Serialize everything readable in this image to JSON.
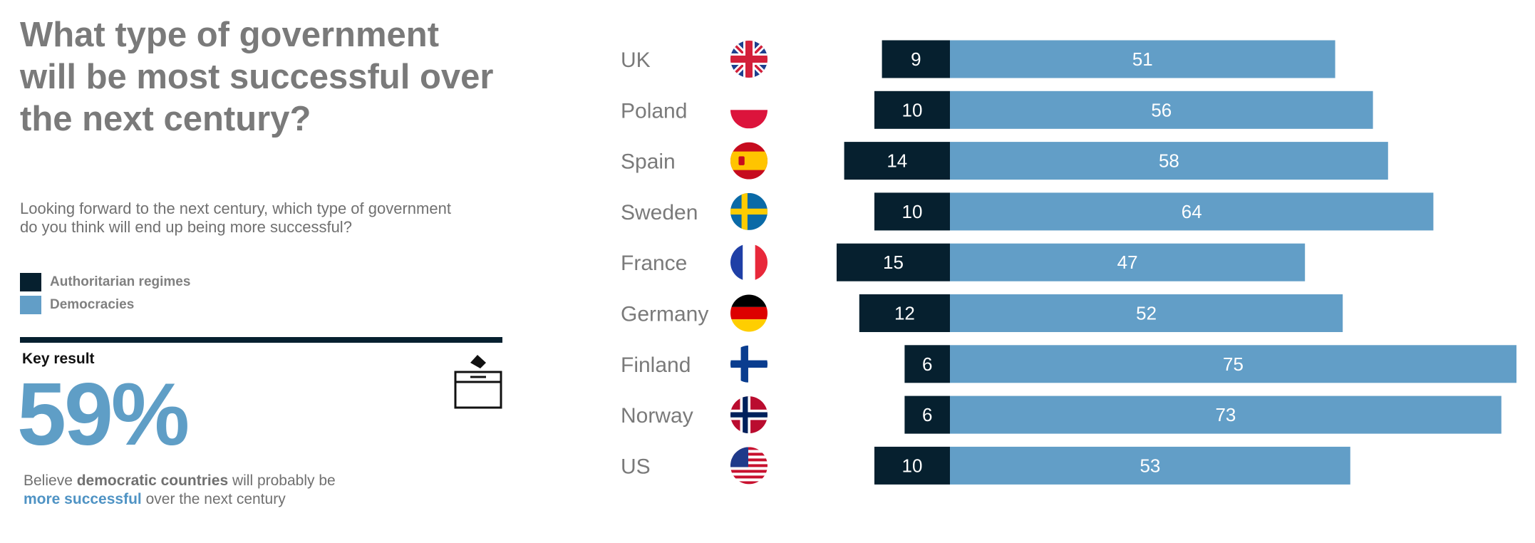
{
  "title": "What type of government will be most successful over the next century?",
  "question": "Looking forward to the next century, which type of government do you think will end up being more successful?",
  "legend": [
    {
      "label": "Authoritarian regimes",
      "color": "#06202f"
    },
    {
      "label": "Democracies",
      "color": "#629ec7"
    }
  ],
  "key_result": {
    "label": "Key result",
    "value": "59%",
    "icon": "ballot-box-icon",
    "note_parts": [
      "Believe ",
      "democratic countries",
      " will probably be",
      "more successful",
      " over the next century"
    ]
  },
  "chart_data": {
    "type": "bar",
    "orientation": "horizontal",
    "stacking": "diverging",
    "categories": [
      "UK",
      "Poland",
      "Spain",
      "Sweden",
      "France",
      "Germany",
      "Finland",
      "Norway",
      "US"
    ],
    "flag_icons": [
      "uk-flag-icon",
      "poland-flag-icon",
      "spain-flag-icon",
      "sweden-flag-icon",
      "france-flag-icon",
      "germany-flag-icon",
      "finland-flag-icon",
      "norway-flag-icon",
      "us-flag-icon"
    ],
    "series": [
      {
        "name": "Authoritarian regimes",
        "color": "#06202f",
        "values": [
          9,
          10,
          14,
          10,
          15,
          12,
          6,
          6,
          10
        ]
      },
      {
        "name": "Democracies",
        "color": "#629ec7",
        "values": [
          51,
          56,
          58,
          64,
          47,
          52,
          75,
          73,
          53
        ]
      }
    ],
    "data_labels": true,
    "grid": false,
    "legend_position": "left"
  }
}
